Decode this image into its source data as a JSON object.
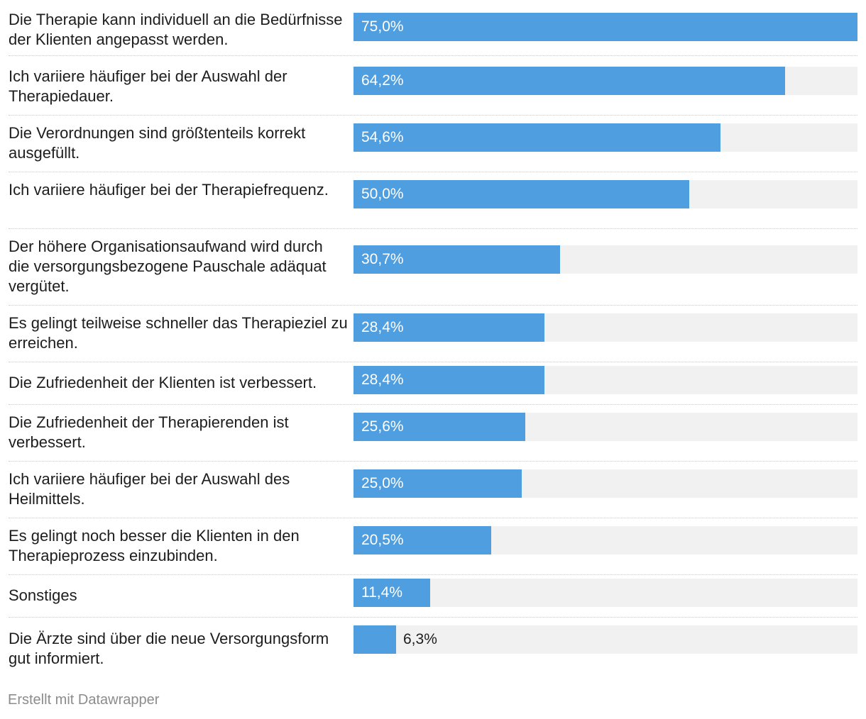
{
  "colors": {
    "bar": "#4f9ee0",
    "track": "#f1f1f1"
  },
  "footer": {
    "credit": "Erstellt mit Datawrapper"
  },
  "chart_data": {
    "type": "bar",
    "orientation": "horizontal",
    "value_max": 75,
    "unit": "%",
    "categories": [
      "Die Therapie kann individuell an die Bedürfnisse der Klienten angepasst werden.",
      "Ich variiere häufiger bei der Auswahl der Therapiedauer.",
      "Die Verordnungen sind größtenteils korrekt ausgefüllt.",
      "Ich variiere häufiger bei der Therapiefrequenz.",
      "Der höhere Organisationsaufwand wird durch die versorgungsbezogene Pauschale adäquat vergütet.",
      "Es gelingt teilweise schneller das Therapieziel zu erreichen.",
      "Die Zufriedenheit der Klienten ist verbessert.",
      "Die Zufriedenheit der Therapierenden ist verbessert.",
      "Ich variiere häufiger bei der Auswahl des Heilmittels.",
      "Es gelingt noch besser die Klienten in den Therapieprozess einzubinden.",
      "Sonstiges",
      "Die Ärzte sind über die neue Versorgungsform gut informiert."
    ],
    "values": [
      75.0,
      64.2,
      54.6,
      50.0,
      30.7,
      28.4,
      28.4,
      25.6,
      25.0,
      20.5,
      11.4,
      6.3
    ],
    "value_labels": [
      "75,0%",
      "64,2%",
      "54,6%",
      "50,0%",
      "30,7%",
      "28,4%",
      "28,4%",
      "25,6%",
      "25,0%",
      "20,5%",
      "11,4%",
      "6,3%"
    ]
  }
}
